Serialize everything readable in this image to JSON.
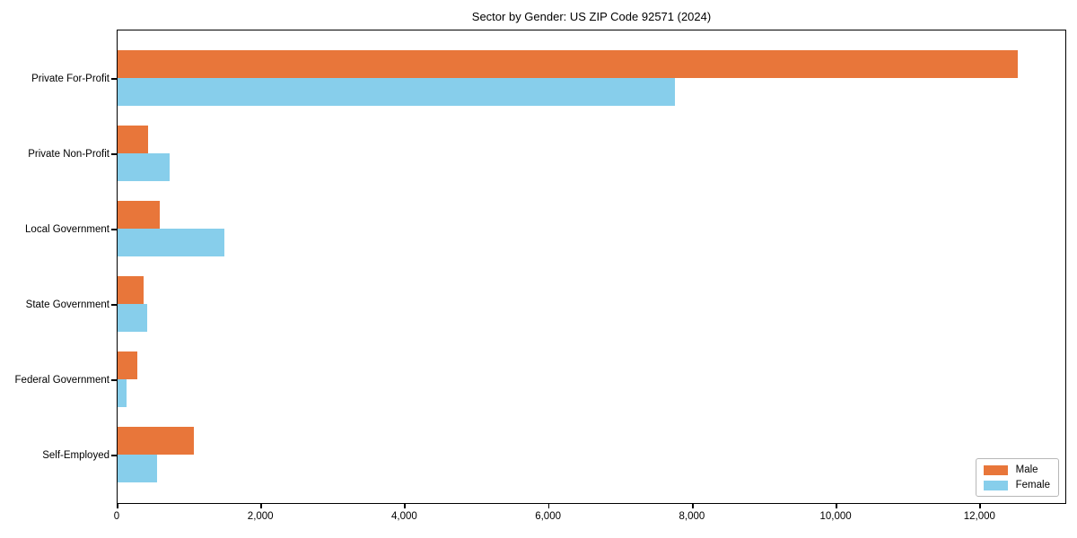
{
  "chart_data": {
    "type": "bar",
    "orientation": "horizontal",
    "title": "Sector by Gender: US ZIP Code 92571 (2024)",
    "categories": [
      "Private For-Profit",
      "Private Non-Profit",
      "Local Government",
      "State Government",
      "Federal Government",
      "Self-Employed"
    ],
    "series": [
      {
        "name": "Male",
        "color": "#e8763a",
        "values": [
          12520,
          430,
          590,
          360,
          270,
          1060
        ]
      },
      {
        "name": "Female",
        "color": "#87ceeb",
        "values": [
          7750,
          720,
          1490,
          410,
          120,
          550
        ]
      }
    ],
    "xlabel": "",
    "ylabel": "",
    "xlim": [
      0,
      13170
    ],
    "xticks": [
      0,
      2000,
      4000,
      6000,
      8000,
      10000,
      12000
    ],
    "xtick_labels": [
      "0",
      "2,000",
      "4,000",
      "6,000",
      "8,000",
      "10,000",
      "12,000"
    ],
    "grid": false,
    "legend_position": "lower right"
  }
}
